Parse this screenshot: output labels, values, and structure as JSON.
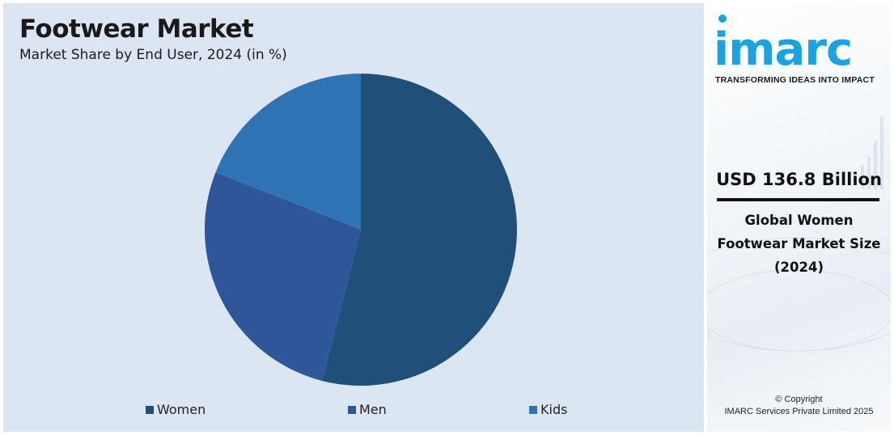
{
  "chart": {
    "title": "Footwear Market",
    "subtitle": "Market Share by End User, 2024 (in %)"
  },
  "chart_data": {
    "type": "pie",
    "title": "Footwear Market",
    "subtitle": "Market Share by End User, 2024 (in %)",
    "categories": [
      "Women",
      "Men",
      "Kids"
    ],
    "values": [
      54,
      27,
      19
    ],
    "colors": [
      "#204f7a",
      "#2e5699",
      "#2e74b5"
    ],
    "start_angle_deg": 0,
    "direction": "clockwise",
    "legend_position": "bottom"
  },
  "side": {
    "logo_text": "imarc",
    "tagline": "TRANSFORMING IDEAS INTO IMPACT",
    "market_value": "USD 136.8 Billion",
    "market_desc": "Global Women Footwear Market Size (2024)",
    "copyright_line1": "© Copyright",
    "copyright_line2": "IMARC Services Private Limited 2025",
    "brand_color": "#1aa3e0"
  }
}
